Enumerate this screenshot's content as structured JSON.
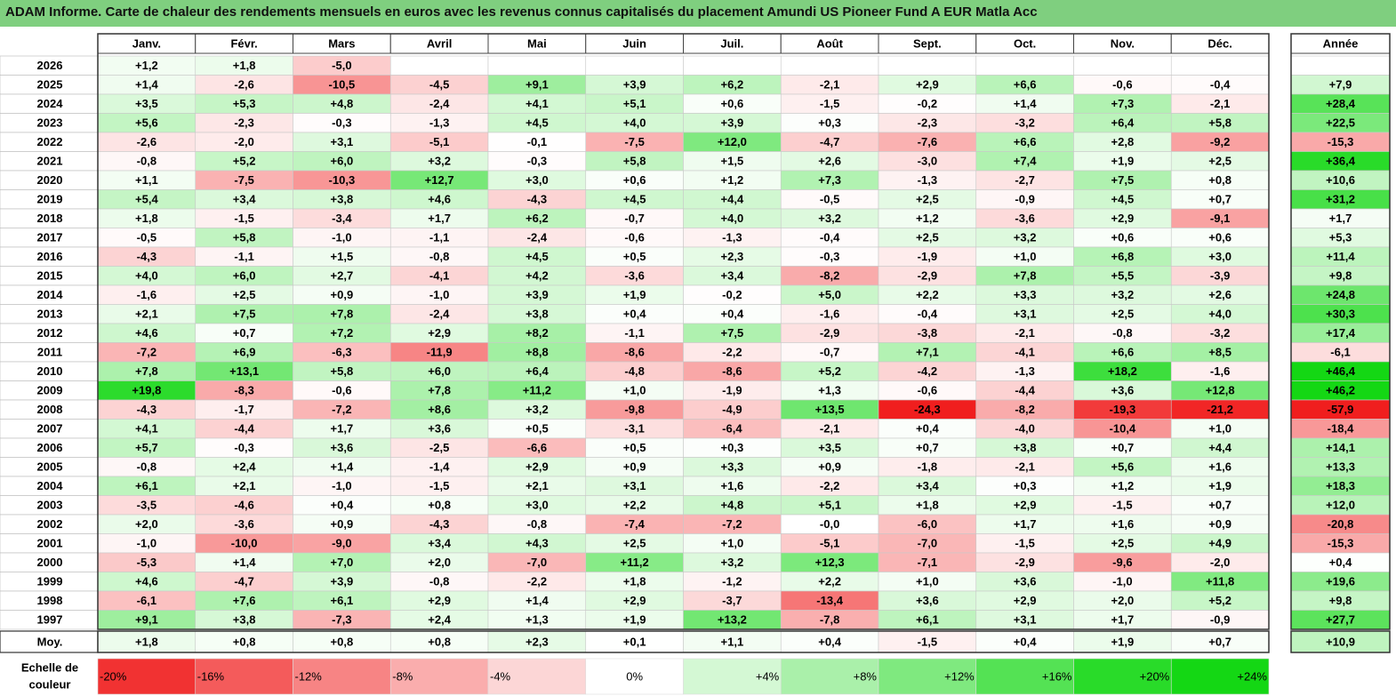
{
  "title": "ADAM Informe. Carte de chaleur des rendements mensuels en euros avec les revenus connus capitalisés du placement Amundi US Pioneer Fund A EUR Matla Acc",
  "chart_data": {
    "type": "heatmap",
    "title": "ADAM Informe. Carte de chaleur des rendements mensuels en euros avec les revenus connus capitalisés du placement Amundi US Pioneer Fund A EUR Matla Acc",
    "columns": [
      "Janv.",
      "Févr.",
      "Mars",
      "Avril",
      "Mai",
      "Juin",
      "Juil.",
      "Août",
      "Sept.",
      "Oct.",
      "Nov.",
      "Déc."
    ],
    "year_column_label": "Année",
    "rows": [
      {
        "label": "2026",
        "values": [
          "+1,2",
          "+1,8",
          "-5,0",
          "",
          "",
          "",
          "",
          "",
          "",
          "",
          "",
          ""
        ],
        "year": ""
      },
      {
        "label": "2025",
        "values": [
          "+1,4",
          "-2,6",
          "-10,5",
          "-4,5",
          "+9,1",
          "+3,9",
          "+6,2",
          "-2,1",
          "+2,9",
          "+6,6",
          "-0,6",
          "-0,4"
        ],
        "year": "+7,9"
      },
      {
        "label": "2024",
        "values": [
          "+3,5",
          "+5,3",
          "+4,8",
          "-2,4",
          "+4,1",
          "+5,1",
          "+0,6",
          "-1,5",
          "-0,2",
          "+1,4",
          "+7,3",
          "-2,1"
        ],
        "year": "+28,4"
      },
      {
        "label": "2023",
        "values": [
          "+5,6",
          "-2,3",
          "-0,3",
          "-1,3",
          "+4,5",
          "+4,0",
          "+3,9",
          "+0,3",
          "-2,3",
          "-3,2",
          "+6,4",
          "+5,8"
        ],
        "year": "+22,5"
      },
      {
        "label": "2022",
        "values": [
          "-2,6",
          "-2,0",
          "+3,1",
          "-5,1",
          "-0,1",
          "-7,5",
          "+12,0",
          "-4,7",
          "-7,6",
          "+6,6",
          "+2,8",
          "-9,2"
        ],
        "year": "-15,3"
      },
      {
        "label": "2021",
        "values": [
          "-0,8",
          "+5,2",
          "+6,0",
          "+3,2",
          "-0,3",
          "+5,8",
          "+1,5",
          "+2,6",
          "-3,0",
          "+7,4",
          "+1,9",
          "+2,5"
        ],
        "year": "+36,4"
      },
      {
        "label": "2020",
        "values": [
          "+1,1",
          "-7,5",
          "-10,3",
          "+12,7",
          "+3,0",
          "+0,6",
          "+1,2",
          "+7,3",
          "-1,3",
          "-2,7",
          "+7,5",
          "+0,8"
        ],
        "year": "+10,6"
      },
      {
        "label": "2019",
        "values": [
          "+5,4",
          "+3,4",
          "+3,8",
          "+4,6",
          "-4,3",
          "+4,5",
          "+4,4",
          "-0,5",
          "+2,5",
          "-0,9",
          "+4,5",
          "+0,7"
        ],
        "year": "+31,2"
      },
      {
        "label": "2018",
        "values": [
          "+1,8",
          "-1,5",
          "-3,4",
          "+1,7",
          "+6,2",
          "-0,7",
          "+4,0",
          "+3,2",
          "+1,2",
          "-3,6",
          "+2,9",
          "-9,1"
        ],
        "year": "+1,7"
      },
      {
        "label": "2017",
        "values": [
          "-0,5",
          "+5,8",
          "-1,0",
          "-1,1",
          "-2,4",
          "-0,6",
          "-1,3",
          "-0,4",
          "+2,5",
          "+3,2",
          "+0,6",
          "+0,6"
        ],
        "year": "+5,3"
      },
      {
        "label": "2016",
        "values": [
          "-4,3",
          "-1,1",
          "+1,5",
          "-0,8",
          "+4,5",
          "+0,5",
          "+2,3",
          "-0,3",
          "-1,9",
          "+1,0",
          "+6,8",
          "+3,0"
        ],
        "year": "+11,4"
      },
      {
        "label": "2015",
        "values": [
          "+4,0",
          "+6,0",
          "+2,7",
          "-4,1",
          "+4,2",
          "-3,6",
          "+3,4",
          "-8,2",
          "-2,9",
          "+7,8",
          "+5,5",
          "-3,9"
        ],
        "year": "+9,8"
      },
      {
        "label": "2014",
        "values": [
          "-1,6",
          "+2,5",
          "+0,9",
          "-1,0",
          "+3,9",
          "+1,9",
          "-0,2",
          "+5,0",
          "+2,2",
          "+3,3",
          "+3,2",
          "+2,6"
        ],
        "year": "+24,8"
      },
      {
        "label": "2013",
        "values": [
          "+2,1",
          "+7,5",
          "+7,8",
          "-2,4",
          "+3,8",
          "+0,4",
          "+0,4",
          "-1,6",
          "-0,4",
          "+3,1",
          "+2,5",
          "+4,0"
        ],
        "year": "+30,3"
      },
      {
        "label": "2012",
        "values": [
          "+4,6",
          "+0,7",
          "+7,2",
          "+2,9",
          "+8,2",
          "-1,1",
          "+7,5",
          "-2,9",
          "-3,8",
          "-2,1",
          "-0,8",
          "-3,2"
        ],
        "year": "+17,4"
      },
      {
        "label": "2011",
        "values": [
          "-7,2",
          "+6,9",
          "-6,3",
          "-11,9",
          "+8,8",
          "-8,6",
          "-2,2",
          "-0,7",
          "+7,1",
          "-4,1",
          "+6,6",
          "+8,5"
        ],
        "year": "-6,1"
      },
      {
        "label": "2010",
        "values": [
          "+7,8",
          "+13,1",
          "+5,8",
          "+6,0",
          "+6,4",
          "-4,8",
          "-8,6",
          "+5,2",
          "-4,2",
          "-1,3",
          "+18,2",
          "-1,6"
        ],
        "year": "+46,4"
      },
      {
        "label": "2009",
        "values": [
          "+19,8",
          "-8,3",
          "-0,6",
          "+7,8",
          "+11,2",
          "+1,0",
          "-1,9",
          "+1,3",
          "-0,6",
          "-4,4",
          "+3,6",
          "+12,8"
        ],
        "year": "+46,2"
      },
      {
        "label": "2008",
        "values": [
          "-4,3",
          "-1,7",
          "-7,2",
          "+8,6",
          "+3,2",
          "-9,8",
          "-4,9",
          "+13,5",
          "-24,3",
          "-8,2",
          "-19,3",
          "-21,2"
        ],
        "year": "-57,9"
      },
      {
        "label": "2007",
        "values": [
          "+4,1",
          "-4,4",
          "+1,7",
          "+3,6",
          "+0,5",
          "-3,1",
          "-6,4",
          "-2,1",
          "+0,4",
          "-4,0",
          "-10,4",
          "+1,0"
        ],
        "year": "-18,4"
      },
      {
        "label": "2006",
        "values": [
          "+5,7",
          "-0,3",
          "+3,6",
          "-2,5",
          "-6,6",
          "+0,5",
          "+0,3",
          "+3,5",
          "+0,7",
          "+3,8",
          "+0,7",
          "+4,4"
        ],
        "year": "+14,1"
      },
      {
        "label": "2005",
        "values": [
          "-0,8",
          "+2,4",
          "+1,4",
          "-1,4",
          "+2,9",
          "+0,9",
          "+3,3",
          "+0,9",
          "-1,8",
          "-2,1",
          "+5,6",
          "+1,6"
        ],
        "year": "+13,3"
      },
      {
        "label": "2004",
        "values": [
          "+6,1",
          "+2,1",
          "-1,0",
          "-1,5",
          "+2,1",
          "+3,1",
          "+1,6",
          "-2,2",
          "+3,4",
          "+0,3",
          "+1,2",
          "+1,9"
        ],
        "year": "+18,3"
      },
      {
        "label": "2003",
        "values": [
          "-3,5",
          "-4,6",
          "+0,4",
          "+0,8",
          "+3,0",
          "+2,2",
          "+4,8",
          "+5,1",
          "+1,8",
          "+2,9",
          "-1,5",
          "+0,7"
        ],
        "year": "+12,0"
      },
      {
        "label": "2002",
        "values": [
          "+2,0",
          "-3,6",
          "+0,9",
          "-4,3",
          "-0,8",
          "-7,4",
          "-7,2",
          "-0,0",
          "-6,0",
          "+1,7",
          "+1,6",
          "+0,9"
        ],
        "year": "-20,8"
      },
      {
        "label": "2001",
        "values": [
          "-1,0",
          "-10,0",
          "-9,0",
          "+3,4",
          "+4,3",
          "+2,5",
          "+1,0",
          "-5,1",
          "-7,0",
          "-1,5",
          "+2,5",
          "+4,9"
        ],
        "year": "-15,3"
      },
      {
        "label": "2000",
        "values": [
          "-5,3",
          "+1,4",
          "+7,0",
          "+2,0",
          "-7,0",
          "+11,2",
          "+3,2",
          "+12,3",
          "-7,1",
          "-2,9",
          "-9,6",
          "-2,0"
        ],
        "year": "+0,4"
      },
      {
        "label": "1999",
        "values": [
          "+4,6",
          "-4,7",
          "+3,9",
          "-0,8",
          "-2,2",
          "+1,8",
          "-1,2",
          "+2,2",
          "+1,0",
          "+3,6",
          "-1,0",
          "+11,8"
        ],
        "year": "+19,6"
      },
      {
        "label": "1998",
        "values": [
          "-6,1",
          "+7,6",
          "+6,1",
          "+2,9",
          "+1,4",
          "+2,9",
          "-3,7",
          "-13,4",
          "+3,6",
          "+2,9",
          "+2,0",
          "+5,2"
        ],
        "year": "+9,8"
      },
      {
        "label": "1997",
        "values": [
          "+9,1",
          "+3,8",
          "-7,3",
          "+2,4",
          "+1,3",
          "+1,9",
          "+13,2",
          "-7,8",
          "+6,1",
          "+3,1",
          "+1,7",
          "-0,9"
        ],
        "year": "+27,7"
      }
    ],
    "average_row": {
      "label": "Moy.",
      "values": [
        "+1,8",
        "+0,8",
        "+0,8",
        "+0,8",
        "+2,3",
        "+0,1",
        "+1,1",
        "+0,4",
        "-1,5",
        "+0,4",
        "+1,9",
        "+0,7"
      ],
      "year": "+10,9"
    },
    "color_scale": {
      "label_line1": "Echelle de",
      "label_line2": "couleur",
      "stops": [
        {
          "label": "-20%",
          "value": -20
        },
        {
          "label": "-16%",
          "value": -16
        },
        {
          "label": "-12%",
          "value": -12
        },
        {
          "label": "-8%",
          "value": -8
        },
        {
          "label": "-4%",
          "value": -4
        },
        {
          "label": "0%",
          "value": 0
        },
        {
          "label": "+4%",
          "value": 4
        },
        {
          "label": "+8%",
          "value": 8
        },
        {
          "label": "+12%",
          "value": 12
        },
        {
          "label": "+16%",
          "value": 16
        },
        {
          "label": "+20%",
          "value": 20
        },
        {
          "label": "+24%",
          "value": 24
        }
      ]
    },
    "colors": {
      "title_bar": "#7fcf7f",
      "negative": "#ff0000",
      "positive": "#00dd00",
      "neutral": "#ffffff"
    }
  }
}
